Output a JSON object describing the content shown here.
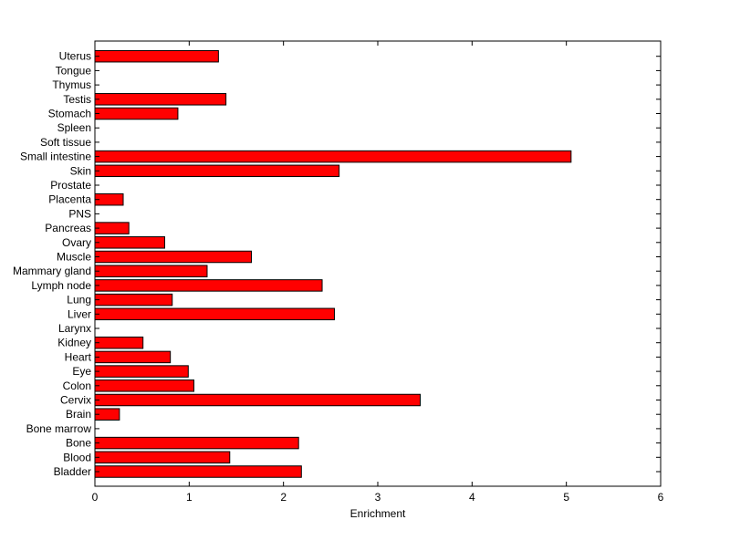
{
  "chart_data": {
    "type": "bar",
    "orientation": "horizontal",
    "xlabel": "Enrichment",
    "ylabel": "",
    "title": "",
    "xlim": [
      0,
      6
    ],
    "xticks": [
      0,
      1,
      2,
      3,
      4,
      5,
      6
    ],
    "grid": false,
    "bar_color": "#ff0000",
    "bar_edge_color": "#000000",
    "categories": [
      "Bladder",
      "Blood",
      "Bone",
      "Bone marrow",
      "Brain",
      "Cervix",
      "Colon",
      "Eye",
      "Heart",
      "Kidney",
      "Larynx",
      "Liver",
      "Lung",
      "Lymph node",
      "Mammary gland",
      "Muscle",
      "Ovary",
      "Pancreas",
      "PNS",
      "Placenta",
      "Prostate",
      "Skin",
      "Small intestine",
      "Soft tissue",
      "Spleen",
      "Stomach",
      "Testis",
      "Thymus",
      "Tongue",
      "Uterus"
    ],
    "values": [
      2.19,
      1.43,
      2.16,
      0,
      0.26,
      3.45,
      1.05,
      0.99,
      0.8,
      0.51,
      0,
      2.54,
      0.82,
      2.41,
      1.19,
      1.66,
      0.74,
      0.36,
      0,
      0.3,
      0,
      2.59,
      5.05,
      0,
      0,
      0.88,
      1.39,
      0,
      0,
      1.31
    ]
  }
}
